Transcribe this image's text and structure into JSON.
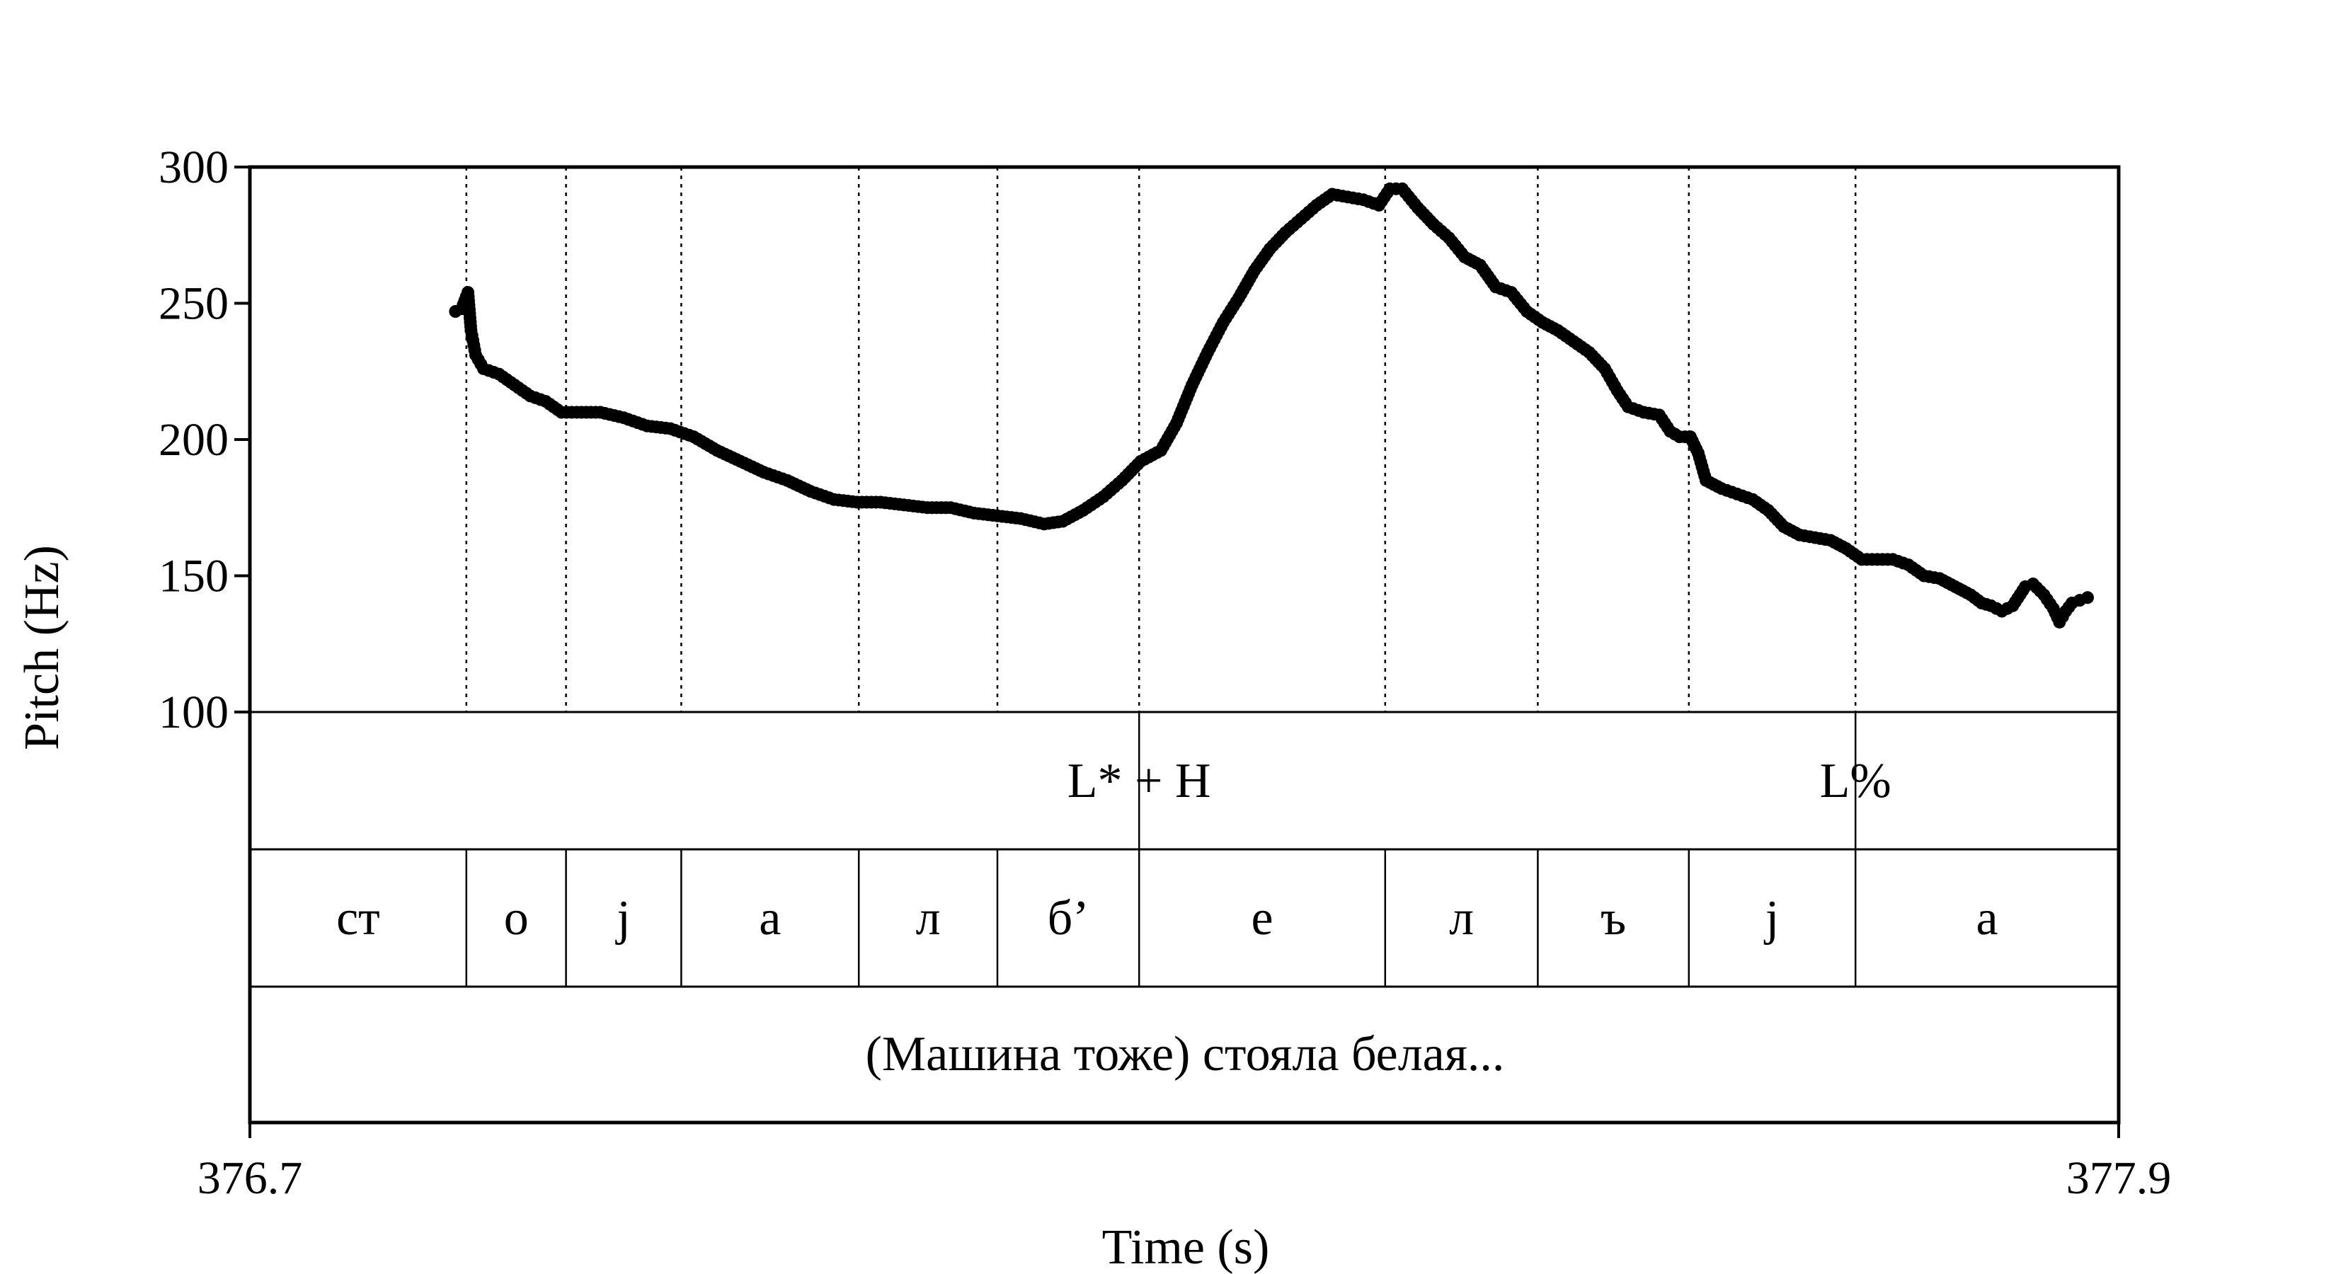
{
  "chart_data": {
    "type": "scatter",
    "ylabel": "Pitch (Hz)",
    "xlabel": "Time (s)",
    "xlim": [
      376.7,
      377.9
    ],
    "ylim": [
      100,
      300
    ],
    "yticks": [
      "300",
      "250",
      "200",
      "150",
      "100"
    ],
    "xtick_labels": [
      "376.7",
      "377.9"
    ],
    "colors": {
      "points": "#000000",
      "lines": "#000000"
    },
    "boundaries": [
      376.839,
      376.903,
      376.977,
      377.091,
      377.18,
      377.271,
      377.429,
      377.527,
      377.624,
      377.731
    ],
    "tones": [
      {
        "label": "L* + H",
        "t": 377.271
      },
      {
        "label": "L%",
        "t": 377.731
      }
    ],
    "segments": [
      {
        "label": "ст",
        "start": 376.7,
        "end": 376.839
      },
      {
        "label": "о",
        "start": 376.839,
        "end": 376.903
      },
      {
        "label": "j",
        "start": 376.903,
        "end": 376.977
      },
      {
        "label": "а",
        "start": 376.977,
        "end": 377.091
      },
      {
        "label": "л",
        "start": 377.091,
        "end": 377.18
      },
      {
        "label": "б’",
        "start": 377.18,
        "end": 377.271
      },
      {
        "label": "е",
        "start": 377.271,
        "end": 377.429
      },
      {
        "label": "л",
        "start": 377.429,
        "end": 377.527
      },
      {
        "label": "ъ",
        "start": 377.527,
        "end": 377.624
      },
      {
        "label": "j",
        "start": 377.624,
        "end": 377.731
      },
      {
        "label": "а",
        "start": 377.731,
        "end": 377.9
      }
    ],
    "sentence": "(Машина тоже) стояла белая...",
    "pitch_track": [
      [
        376.832,
        247
      ],
      [
        376.836,
        248
      ],
      [
        376.84,
        254
      ],
      [
        376.842,
        240
      ],
      [
        376.845,
        231
      ],
      [
        376.85,
        226
      ],
      [
        376.86,
        224
      ],
      [
        376.87,
        220
      ],
      [
        376.88,
        216
      ],
      [
        376.89,
        214
      ],
      [
        376.9,
        210
      ],
      [
        376.91,
        210
      ],
      [
        376.925,
        210
      ],
      [
        376.94,
        208
      ],
      [
        376.955,
        205
      ],
      [
        376.97,
        204
      ],
      [
        376.985,
        201
      ],
      [
        377.0,
        196
      ],
      [
        377.015,
        192
      ],
      [
        377.03,
        188
      ],
      [
        377.045,
        185
      ],
      [
        377.06,
        181
      ],
      [
        377.075,
        178
      ],
      [
        377.09,
        177
      ],
      [
        377.105,
        177
      ],
      [
        377.12,
        176
      ],
      [
        377.135,
        175
      ],
      [
        377.15,
        175
      ],
      [
        377.165,
        173
      ],
      [
        377.18,
        172
      ],
      [
        377.195,
        171
      ],
      [
        377.21,
        169
      ],
      [
        377.222,
        170
      ],
      [
        377.235,
        174
      ],
      [
        377.248,
        179
      ],
      [
        377.26,
        185
      ],
      [
        377.272,
        192
      ],
      [
        377.285,
        196
      ],
      [
        377.295,
        206
      ],
      [
        377.305,
        220
      ],
      [
        377.315,
        232
      ],
      [
        377.325,
        243
      ],
      [
        377.335,
        252
      ],
      [
        377.345,
        262
      ],
      [
        377.355,
        270
      ],
      [
        377.365,
        276
      ],
      [
        377.375,
        281
      ],
      [
        377.385,
        286
      ],
      [
        377.395,
        290
      ],
      [
        377.405,
        289
      ],
      [
        377.415,
        288
      ],
      [
        377.425,
        286
      ],
      [
        377.432,
        292
      ],
      [
        377.44,
        292
      ],
      [
        377.45,
        285
      ],
      [
        377.46,
        279
      ],
      [
        377.47,
        274
      ],
      [
        377.48,
        267
      ],
      [
        377.49,
        264
      ],
      [
        377.5,
        256
      ],
      [
        377.51,
        254
      ],
      [
        377.52,
        247
      ],
      [
        377.53,
        243
      ],
      [
        377.54,
        240
      ],
      [
        377.55,
        236
      ],
      [
        377.56,
        232
      ],
      [
        377.57,
        226
      ],
      [
        377.578,
        218
      ],
      [
        377.585,
        212
      ],
      [
        377.595,
        210
      ],
      [
        377.605,
        209
      ],
      [
        377.612,
        203
      ],
      [
        377.618,
        201
      ],
      [
        377.625,
        201
      ],
      [
        377.63,
        195
      ],
      [
        377.635,
        185
      ],
      [
        377.645,
        182
      ],
      [
        377.655,
        180
      ],
      [
        377.665,
        178
      ],
      [
        377.675,
        174
      ],
      [
        377.685,
        168
      ],
      [
        377.695,
        165
      ],
      [
        377.705,
        164
      ],
      [
        377.715,
        163
      ],
      [
        377.725,
        160
      ],
      [
        377.735,
        156
      ],
      [
        377.745,
        156
      ],
      [
        377.755,
        156
      ],
      [
        377.765,
        154
      ],
      [
        377.775,
        150
      ],
      [
        377.785,
        149
      ],
      [
        377.795,
        146
      ],
      [
        377.805,
        143
      ],
      [
        377.812,
        140
      ],
      [
        377.818,
        139
      ],
      [
        377.825,
        137
      ],
      [
        377.832,
        139
      ],
      [
        377.84,
        146
      ],
      [
        377.845,
        147
      ],
      [
        377.852,
        143
      ],
      [
        377.858,
        138
      ],
      [
        377.862,
        133
      ],
      [
        377.866,
        137
      ],
      [
        377.87,
        140
      ],
      [
        377.875,
        141
      ],
      [
        377.88,
        142
      ]
    ]
  }
}
